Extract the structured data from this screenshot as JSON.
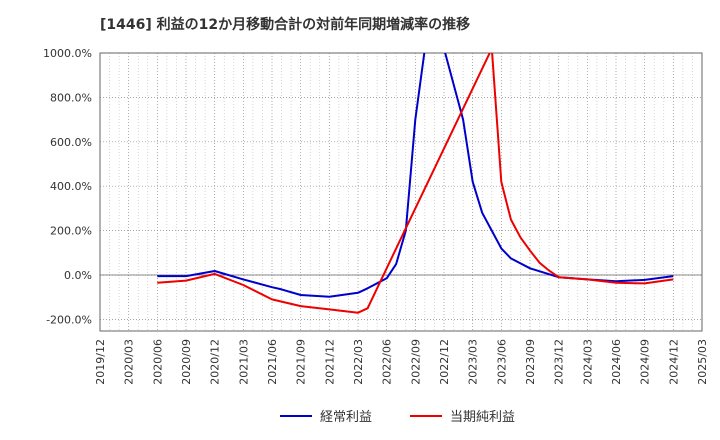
{
  "chart_data": {
    "type": "line",
    "title": "[1446]  利益の12か月移動合計の対前年同期増減率の推移",
    "xlabel": "",
    "ylabel": "",
    "ylim": [
      -250,
      1000
    ],
    "y_ticks": [
      1000,
      800,
      600,
      400,
      200,
      0,
      -200
    ],
    "y_tick_labels": [
      "1000.0%",
      "800.0%",
      "600.0%",
      "400.0%",
      "200.0%",
      "0.0%",
      "-200.0%"
    ],
    "x_tick_labels": [
      "2019/12",
      "2020/03",
      "2020/06",
      "2020/09",
      "2020/12",
      "2021/03",
      "2021/06",
      "2021/09",
      "2021/12",
      "2022/03",
      "2022/06",
      "2022/09",
      "2022/12",
      "2023/03",
      "2023/06",
      "2023/09",
      "2023/12",
      "2024/03",
      "2024/06",
      "2024/09",
      "2024/12",
      "2025/03"
    ],
    "grid": true,
    "series": [
      {
        "name": "経常利益",
        "color": "#0000cc",
        "points": [
          [
            "2020/06",
            -5
          ],
          [
            "2020/09",
            -5
          ],
          [
            "2020/12",
            18
          ],
          [
            "2021/03",
            -20
          ],
          [
            "2021/06",
            -55
          ],
          [
            "2021/07",
            -65
          ],
          [
            "2021/09",
            -90
          ],
          [
            "2021/12",
            -98
          ],
          [
            "2022/03",
            -80
          ],
          [
            "2022/04",
            -60
          ],
          [
            "2022/06",
            -15
          ],
          [
            "2022/07",
            50
          ],
          [
            "2022/08",
            200
          ],
          [
            "2022/09",
            700
          ],
          [
            "2022/10",
            1020
          ],
          [
            "2022/12",
            1020
          ],
          [
            "2023/02",
            700
          ],
          [
            "2023/03",
            420
          ],
          [
            "2023/04",
            280
          ],
          [
            "2023/06",
            120
          ],
          [
            "2023/07",
            75
          ],
          [
            "2023/09",
            30
          ],
          [
            "2023/12",
            -10
          ],
          [
            "2024/03",
            -20
          ],
          [
            "2024/06",
            -28
          ],
          [
            "2024/09",
            -22
          ],
          [
            "2024/12",
            -5
          ]
        ]
      },
      {
        "name": "当期純利益",
        "color": "#ee0000",
        "points": [
          [
            "2020/06",
            -35
          ],
          [
            "2020/09",
            -25
          ],
          [
            "2020/12",
            5
          ],
          [
            "2021/03",
            -45
          ],
          [
            "2021/06",
            -110
          ],
          [
            "2021/09",
            -140
          ],
          [
            "2021/12",
            -155
          ],
          [
            "2022/03",
            -170
          ],
          [
            "2022/04",
            -150
          ],
          [
            "2022/05",
            -60
          ],
          [
            "2023/05",
            1020
          ],
          [
            "2023/06",
            420
          ],
          [
            "2023/07",
            250
          ],
          [
            "2023/08",
            170
          ],
          [
            "2023/09",
            110
          ],
          [
            "2023/10",
            55
          ],
          [
            "2023/11",
            20
          ],
          [
            "2023/12",
            -10
          ],
          [
            "2024/03",
            -20
          ],
          [
            "2024/06",
            -35
          ],
          [
            "2024/09",
            -38
          ],
          [
            "2024/12",
            -20
          ]
        ]
      }
    ]
  }
}
